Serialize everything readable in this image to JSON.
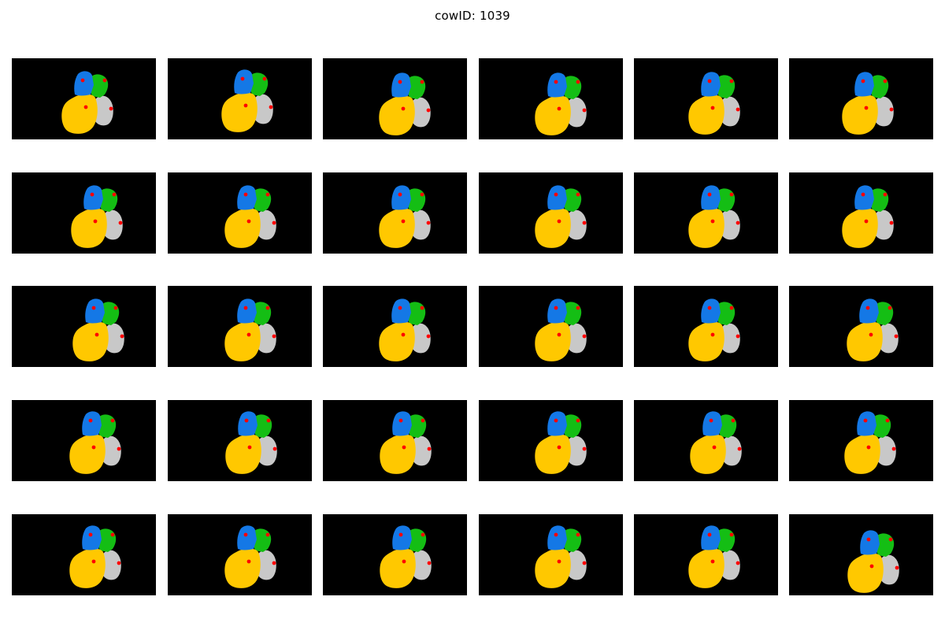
{
  "figure": {
    "title": "cowID: 1039",
    "rows": 5,
    "cols": 6
  },
  "colors": {
    "background": "#000000",
    "region_yellow": "#FFC800",
    "region_blue": "#1478E6",
    "region_green": "#14BE14",
    "region_gray": "#C8C8C8",
    "marker": "#FF0000"
  },
  "frames": [
    {
      "index": 1
    },
    {
      "index": 2
    },
    {
      "index": 3
    },
    {
      "index": 4
    },
    {
      "index": 5
    },
    {
      "index": 6
    },
    {
      "index": 7
    },
    {
      "index": 8
    },
    {
      "index": 9
    },
    {
      "index": 10
    },
    {
      "index": 11
    },
    {
      "index": 12
    },
    {
      "index": 13
    },
    {
      "index": 14
    },
    {
      "index": 15
    },
    {
      "index": 16
    },
    {
      "index": 17
    },
    {
      "index": 18
    },
    {
      "index": 19
    },
    {
      "index": 20
    },
    {
      "index": 21
    },
    {
      "index": 22
    },
    {
      "index": 23
    },
    {
      "index": 24
    },
    {
      "index": 25
    },
    {
      "index": 26
    },
    {
      "index": 27
    },
    {
      "index": 28
    },
    {
      "index": 29
    },
    {
      "index": 30
    }
  ]
}
